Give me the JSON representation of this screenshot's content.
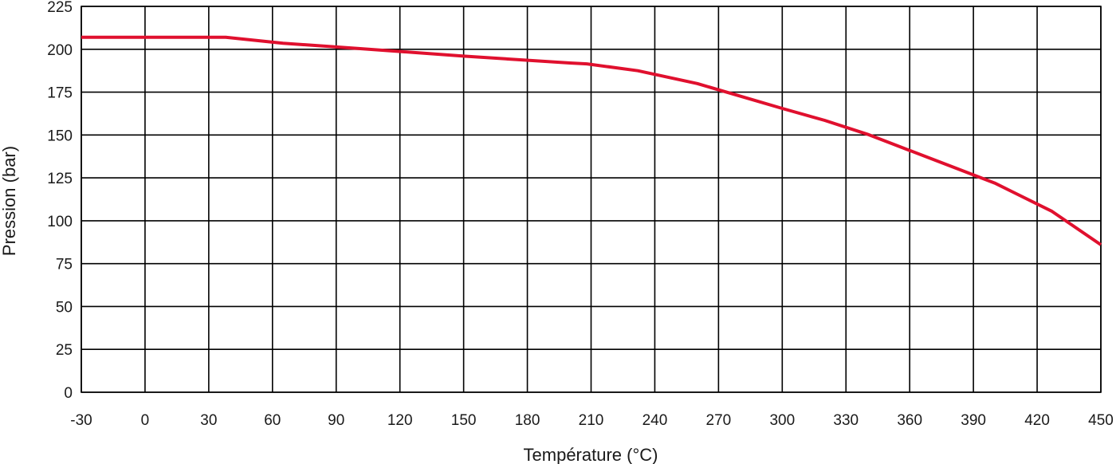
{
  "chart_data": {
    "type": "line",
    "xlabel": "Température (°C)",
    "ylabel": "Pression (bar)",
    "xlim": [
      -30,
      450
    ],
    "ylim": [
      0,
      225
    ],
    "x_ticks": [
      -30,
      0,
      30,
      60,
      90,
      120,
      150,
      180,
      210,
      240,
      270,
      300,
      330,
      360,
      390,
      420,
      450
    ],
    "y_ticks": [
      0,
      25,
      50,
      75,
      100,
      125,
      150,
      175,
      200,
      225
    ],
    "x_tick_labels": [
      "-30",
      "0",
      "30",
      "60",
      "90",
      "120",
      "150",
      "180",
      "210",
      "240",
      "270",
      "300",
      "330",
      "360",
      "390",
      "420",
      "450"
    ],
    "y_tick_labels": [
      "0",
      "25",
      "50",
      "75",
      "100",
      "125",
      "150",
      "175",
      "200",
      "225"
    ],
    "grid": true,
    "series": [
      {
        "color": "#e0102e",
        "x": [
          -30,
          38,
          65,
          100,
          150,
          200,
          208,
          232,
          260,
          300,
          320,
          340,
          360,
          380,
          400,
          427,
          450
        ],
        "y": [
          207,
          207,
          203.5,
          200.5,
          196,
          192,
          191.5,
          187.5,
          180,
          165.5,
          158.5,
          150.5,
          141,
          131.5,
          122,
          105.5,
          86
        ]
      }
    ]
  }
}
